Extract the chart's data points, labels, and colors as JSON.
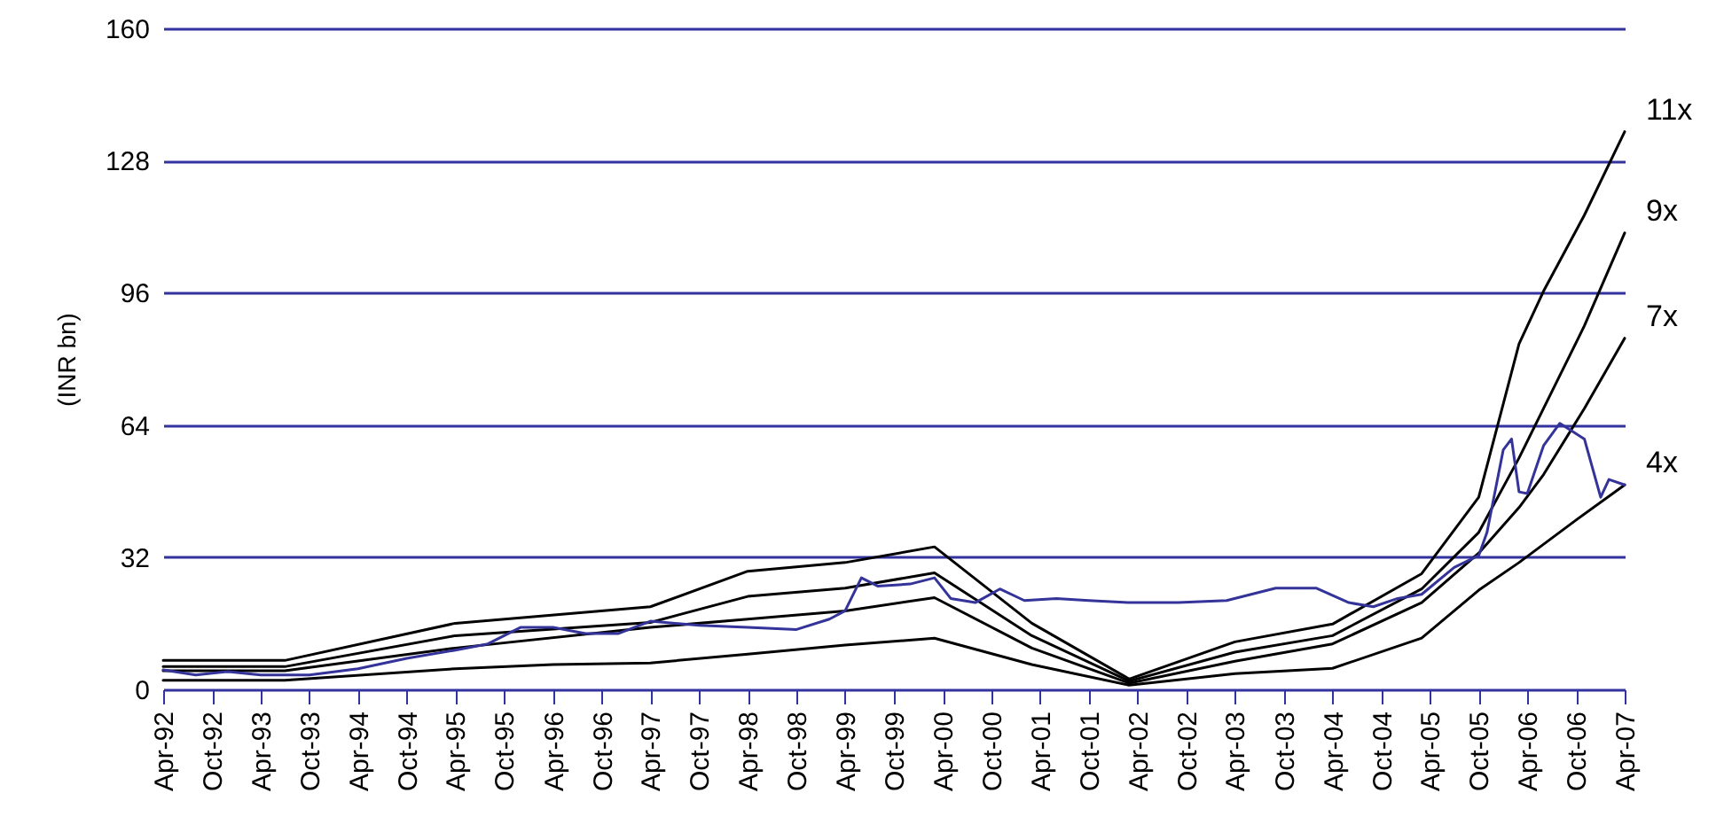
{
  "chart_data": {
    "type": "line",
    "ylabel": "(INR bn)",
    "ylim": [
      0,
      160
    ],
    "yticks": [
      0,
      32,
      64,
      96,
      128,
      160
    ],
    "xlim": [
      "1992-04",
      "2007-04"
    ],
    "xticks": [
      {
        "value": "1992-04",
        "label": "Apr-92"
      },
      {
        "value": "1992-10",
        "label": "Oct-92"
      },
      {
        "value": "1993-04",
        "label": "Apr-93"
      },
      {
        "value": "1993-10",
        "label": "Oct-93"
      },
      {
        "value": "1994-04",
        "label": "Apr-94"
      },
      {
        "value": "1994-10",
        "label": "Oct-94"
      },
      {
        "value": "1995-04",
        "label": "Apr-95"
      },
      {
        "value": "1995-10",
        "label": "Oct-95"
      },
      {
        "value": "1996-04",
        "label": "Apr-96"
      },
      {
        "value": "1996-10",
        "label": "Oct-96"
      },
      {
        "value": "1997-04",
        "label": "Apr-97"
      },
      {
        "value": "1997-10",
        "label": "Oct-97"
      },
      {
        "value": "1998-04",
        "label": "Apr-98"
      },
      {
        "value": "1998-10",
        "label": "Oct-98"
      },
      {
        "value": "1999-04",
        "label": "Apr-99"
      },
      {
        "value": "1999-10",
        "label": "Oct-99"
      },
      {
        "value": "2000-04",
        "label": "Apr-00"
      },
      {
        "value": "2000-10",
        "label": "Oct-00"
      },
      {
        "value": "2001-04",
        "label": "Apr-01"
      },
      {
        "value": "2001-10",
        "label": "Oct-01"
      },
      {
        "value": "2002-04",
        "label": "Apr-02"
      },
      {
        "value": "2002-10",
        "label": "Oct-02"
      },
      {
        "value": "2003-04",
        "label": "Apr-03"
      },
      {
        "value": "2003-10",
        "label": "Oct-03"
      },
      {
        "value": "2004-04",
        "label": "Apr-04"
      },
      {
        "value": "2004-10",
        "label": "Oct-04"
      },
      {
        "value": "2005-04",
        "label": "Apr-05"
      },
      {
        "value": "2005-10",
        "label": "Oct-05"
      },
      {
        "value": "2006-04",
        "label": "Apr-06"
      },
      {
        "value": "2006-10",
        "label": "Oct-06"
      },
      {
        "value": "2007-04",
        "label": "Apr-07"
      }
    ],
    "grid": "y",
    "line_style": "solid",
    "marker": "none",
    "series": [
      {
        "name": "11x",
        "color": "#000000",
        "x": [
          "1992-04",
          "1993-07",
          "1995-04",
          "1997-04",
          "1998-04",
          "1999-04",
          "2000-03",
          "2001-03",
          "2002-03",
          "2003-04",
          "2004-04",
          "2005-03",
          "2005-10",
          "2006-03",
          "2006-06",
          "2006-11",
          "2007-04"
        ],
        "values": [
          7,
          7,
          16,
          20,
          28.6,
          30.7,
          34.5,
          16,
          2.5,
          11.5,
          15.8,
          28,
          46.5,
          83.6,
          96.4,
          114.8,
          135
        ]
      },
      {
        "name": "9x",
        "color": "#000000",
        "x": [
          "1992-04",
          "1993-07",
          "1995-04",
          "1997-04",
          "1998-04",
          "1999-04",
          "2000-03",
          "2001-03",
          "2002-03",
          "2003-04",
          "2004-04",
          "2005-03",
          "2005-10",
          "2006-03",
          "2006-06",
          "2006-11",
          "2007-04"
        ],
        "values": [
          5.5,
          5.5,
          13,
          16.2,
          22.5,
          24.5,
          28.2,
          13,
          2,
          9,
          13,
          24.3,
          38,
          56,
          68,
          88,
          110.5
        ]
      },
      {
        "name": "7x",
        "color": "#000000",
        "x": [
          "1992-04",
          "1993-07",
          "1995-04",
          "1997-04",
          "1998-04",
          "1999-04",
          "2000-03",
          "2001-03",
          "2002-03",
          "2003-04",
          "2004-04",
          "2005-03",
          "2005-10",
          "2006-03",
          "2006-06",
          "2006-11",
          "2007-04"
        ],
        "values": [
          4.5,
          4.5,
          10,
          15,
          17,
          19,
          22.2,
          10,
          1.5,
          6.8,
          11,
          21,
          33,
          44,
          52,
          68,
          85
        ]
      },
      {
        "name": "4x",
        "color": "#000000",
        "x": [
          "1992-04",
          "1993-07",
          "1995-04",
          "1996-04",
          "1997-04",
          "1998-04",
          "1999-04",
          "2000-03",
          "2001-03",
          "2002-03",
          "2003-04",
          "2004-04",
          "2005-03",
          "2005-10",
          "2006-03",
          "2006-10",
          "2007-04"
        ],
        "values": [
          2.2,
          2.2,
          5,
          6,
          6.4,
          8.5,
          10.7,
          12.4,
          6,
          1,
          3.8,
          5.1,
          12.4,
          24,
          30.7,
          41,
          49.5
        ]
      },
      {
        "color": "#333399",
        "x": [
          "1992-04",
          "1992-08",
          "1992-12",
          "1993-04",
          "1993-10",
          "1994-04",
          "1994-10",
          "1995-04",
          "1995-08",
          "1995-12",
          "1996-04",
          "1996-08",
          "1996-12",
          "1997-04",
          "1997-10",
          "1998-04",
          "1998-10",
          "1999-02",
          "1999-04",
          "1999-06",
          "1999-08",
          "1999-12",
          "2000-03",
          "2000-05",
          "2000-08",
          "2000-11",
          "2001-02",
          "2001-06",
          "2001-10",
          "2002-03",
          "2002-09",
          "2003-03",
          "2003-06",
          "2003-09",
          "2004-02",
          "2004-06",
          "2004-09",
          "2004-12",
          "2005-03",
          "2005-07",
          "2005-10",
          "2005-11",
          "2006-01",
          "2006-02",
          "2006-03",
          "2006-04",
          "2006-06",
          "2006-08",
          "2006-11",
          "2007-01",
          "2007-02",
          "2007-04"
        ],
        "values": [
          4.7,
          3.5,
          4.3,
          3.5,
          3.5,
          5,
          7.5,
          9.5,
          11,
          15,
          15,
          13.5,
          13.5,
          16.5,
          15.5,
          15,
          14.5,
          17,
          19,
          27,
          25,
          25.5,
          27,
          22,
          21,
          24.3,
          21.5,
          22,
          21.5,
          21,
          21,
          21.5,
          23,
          24.5,
          24.5,
          21,
          20,
          22,
          23,
          29.5,
          32.4,
          38,
          58,
          60.6,
          47.8,
          47.4,
          59,
          64.4,
          60.6,
          46.5,
          50.8,
          49.5
        ]
      }
    ]
  }
}
